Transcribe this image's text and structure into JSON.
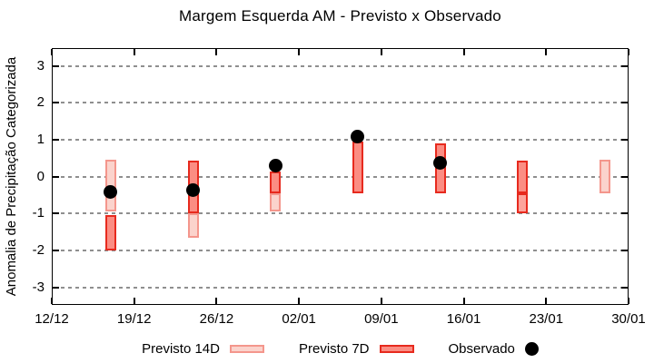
{
  "chart_data": {
    "type": "bar",
    "subtype": "range-bars-with-scatter",
    "title": "Margem Esquerda AM - Previsto x Observado",
    "xlabel": "",
    "ylabel": "Anomalia de Precipitação Categorizada",
    "ylim": [
      -3.48,
      3.49
    ],
    "yticks": [
      3,
      2,
      1,
      0,
      -1,
      -2,
      -3
    ],
    "xlim_days": [
      0,
      49
    ],
    "xticks": [
      {
        "day": 0,
        "label": "12/12"
      },
      {
        "day": 7,
        "label": "19/12"
      },
      {
        "day": 14,
        "label": "26/12"
      },
      {
        "day": 21,
        "label": "02/01"
      },
      {
        "day": 28,
        "label": "09/01"
      },
      {
        "day": 35,
        "label": "16/01"
      },
      {
        "day": 42,
        "label": "23/01"
      },
      {
        "day": 49,
        "label": "30/01"
      }
    ],
    "grid": "horizontal-dotted",
    "legend_position": "bottom-center",
    "styles": {
      "previsto14d": {
        "fill": "#FBD3CC",
        "border": "#F4968C"
      },
      "previsto7d": {
        "fill": "#FB8D83",
        "border": "#E72A1E"
      },
      "previsto7d_light": {
        "fill": "#FDA49C",
        "border": "#E72A1E"
      },
      "observado": {
        "fill": "#000000"
      },
      "grid_color": "#8F8F8F"
    },
    "groups": [
      {
        "date": "17/12",
        "day": 5,
        "segments": [
          {
            "style": "previsto14d",
            "top": 0.45,
            "bottom": -0.95
          },
          {
            "style": "previsto7d",
            "top": -1.05,
            "bottom": -2.0
          }
        ],
        "observed": -0.42
      },
      {
        "date": "24/12",
        "day": 12,
        "segments": [
          {
            "style": "previsto7d",
            "top": 0.43,
            "bottom": -1.0
          },
          {
            "style": "previsto14d",
            "top": -1.0,
            "bottom": -1.65
          }
        ],
        "observed": -0.36
      },
      {
        "date": "31/12",
        "day": 19,
        "segments": [
          {
            "style": "previsto7d",
            "top": 0.15,
            "bottom": -0.45
          },
          {
            "style": "previsto14d",
            "top": -0.45,
            "bottom": -0.95
          }
        ],
        "observed": 0.3
      },
      {
        "date": "07/01",
        "day": 26,
        "segments": [
          {
            "style": "previsto7d",
            "top": 0.95,
            "bottom": -0.45
          }
        ],
        "observed": 1.1
      },
      {
        "date": "14/01",
        "day": 33,
        "segments": [
          {
            "style": "previsto7d",
            "top": 0.9,
            "bottom": -0.45
          }
        ],
        "observed": 0.38
      },
      {
        "date": "21/01",
        "day": 40,
        "segments": [
          {
            "style": "previsto7d",
            "top": 0.43,
            "bottom": -0.45
          },
          {
            "style": "previsto7d_light",
            "top": -0.45,
            "bottom": -1.0
          }
        ],
        "observed": null
      },
      {
        "date": "28/01",
        "day": 47,
        "segments": [
          {
            "style": "previsto14d",
            "top": 0.45,
            "bottom": -0.45
          }
        ],
        "observed": null
      }
    ],
    "legend": [
      {
        "label": "Previsto 14D",
        "style": "previsto14d",
        "marker": "swatch"
      },
      {
        "label": "Previsto 7D",
        "style": "previsto7d",
        "marker": "swatch"
      },
      {
        "label": "Observado",
        "style": "observado",
        "marker": "dot"
      }
    ]
  }
}
